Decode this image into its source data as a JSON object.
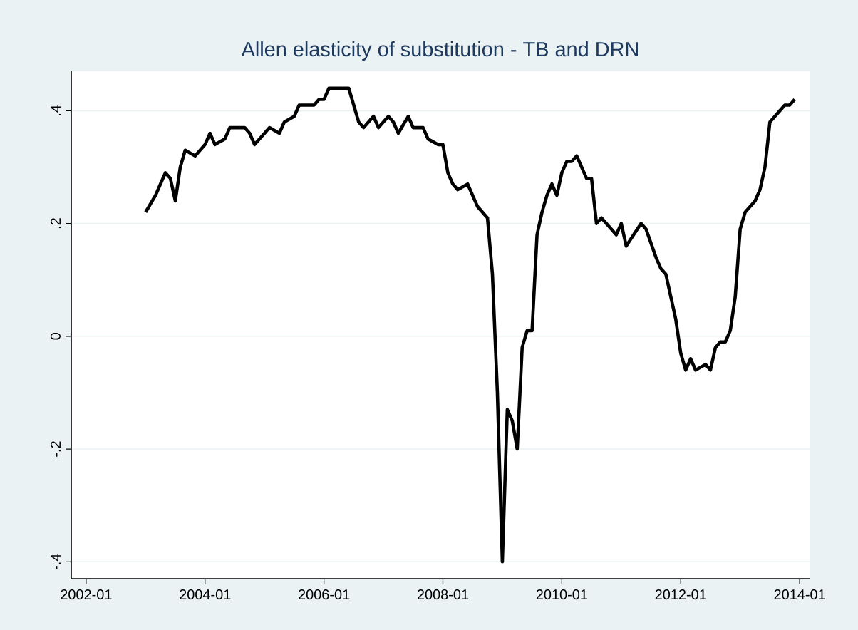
{
  "chart_data": {
    "type": "line",
    "title": "Allen elasticity of substitution - TB and DRN",
    "x": [
      "2003-01",
      "2003-03",
      "2003-04",
      "2003-05",
      "2003-06",
      "2003-07",
      "2003-08",
      "2003-09",
      "2003-11",
      "2004-01",
      "2004-02",
      "2004-03",
      "2004-05",
      "2004-06",
      "2004-09",
      "2004-10",
      "2004-11",
      "2005-01",
      "2005-02",
      "2005-04",
      "2005-05",
      "2005-07",
      "2005-08",
      "2005-09",
      "2005-11",
      "2005-12",
      "2006-01",
      "2006-02",
      "2006-03",
      "2006-05",
      "2006-06",
      "2006-08",
      "2006-09",
      "2006-11",
      "2006-12",
      "2007-02",
      "2007-03",
      "2007-04",
      "2007-06",
      "2007-07",
      "2007-09",
      "2007-10",
      "2007-12",
      "2008-01",
      "2008-02",
      "2008-03",
      "2008-04",
      "2008-06",
      "2008-07",
      "2008-08",
      "2008-10",
      "2008-11",
      "2008-12",
      "2009-01",
      "2009-02",
      "2009-03",
      "2009-04",
      "2009-05",
      "2009-06",
      "2009-07",
      "2009-08",
      "2009-09",
      "2009-10",
      "2009-11",
      "2009-12",
      "2010-01",
      "2010-02",
      "2010-03",
      "2010-04",
      "2010-06",
      "2010-07",
      "2010-08",
      "2010-09",
      "2010-11",
      "2010-12",
      "2011-01",
      "2011-02",
      "2011-05",
      "2011-06",
      "2011-08",
      "2011-09",
      "2011-10",
      "2011-11",
      "2011-12",
      "2012-01",
      "2012-02",
      "2012-03",
      "2012-04",
      "2012-06",
      "2012-07",
      "2012-08",
      "2012-09",
      "2012-10",
      "2012-11",
      "2012-12",
      "2013-01",
      "2013-02",
      "2013-04",
      "2013-05",
      "2013-06",
      "2013-07",
      "2013-09",
      "2013-10",
      "2013-11",
      "2013-12"
    ],
    "series": [
      {
        "color": "#000000",
        "values": [
          0.22,
          0.25,
          0.27,
          0.29,
          0.28,
          0.24,
          0.3,
          0.33,
          0.32,
          0.34,
          0.36,
          0.34,
          0.35,
          0.37,
          0.37,
          0.36,
          0.34,
          0.36,
          0.37,
          0.36,
          0.38,
          0.39,
          0.41,
          0.41,
          0.41,
          0.42,
          0.42,
          0.44,
          0.44,
          0.44,
          0.44,
          0.38,
          0.37,
          0.39,
          0.37,
          0.39,
          0.38,
          0.36,
          0.39,
          0.37,
          0.37,
          0.35,
          0.34,
          0.34,
          0.29,
          0.27,
          0.26,
          0.27,
          0.25,
          0.23,
          0.21,
          0.11,
          -0.1,
          -0.4,
          -0.13,
          -0.15,
          -0.2,
          -0.02,
          0.01,
          0.01,
          0.18,
          0.22,
          0.25,
          0.27,
          0.25,
          0.29,
          0.31,
          0.31,
          0.32,
          0.28,
          0.28,
          0.2,
          0.21,
          0.19,
          0.18,
          0.2,
          0.16,
          0.2,
          0.19,
          0.14,
          0.12,
          0.11,
          0.07,
          0.03,
          -0.03,
          -0.06,
          -0.04,
          -0.06,
          -0.05,
          -0.06,
          -0.02,
          -0.01,
          -0.01,
          0.01,
          0.07,
          0.19,
          0.22,
          0.24,
          0.26,
          0.3,
          0.38,
          0.4,
          0.41,
          0.41,
          0.42
        ]
      }
    ],
    "xlim": [
      "2001-10",
      "2014-03"
    ],
    "xticks": [
      "2002-01",
      "2004-01",
      "2006-01",
      "2008-01",
      "2010-01",
      "2012-01",
      "2014-01"
    ],
    "ylim": [
      -0.43,
      0.47
    ],
    "yticks": [
      {
        "value": 0.4,
        "label": ".4"
      },
      {
        "value": 0.2,
        "label": ".2"
      },
      {
        "value": 0,
        "label": "0"
      },
      {
        "value": -0.2,
        "label": "-.2"
      },
      {
        "value": -0.4,
        "label": "-.4"
      }
    ],
    "grid": "y",
    "marker": "none",
    "line_style": "solid"
  }
}
